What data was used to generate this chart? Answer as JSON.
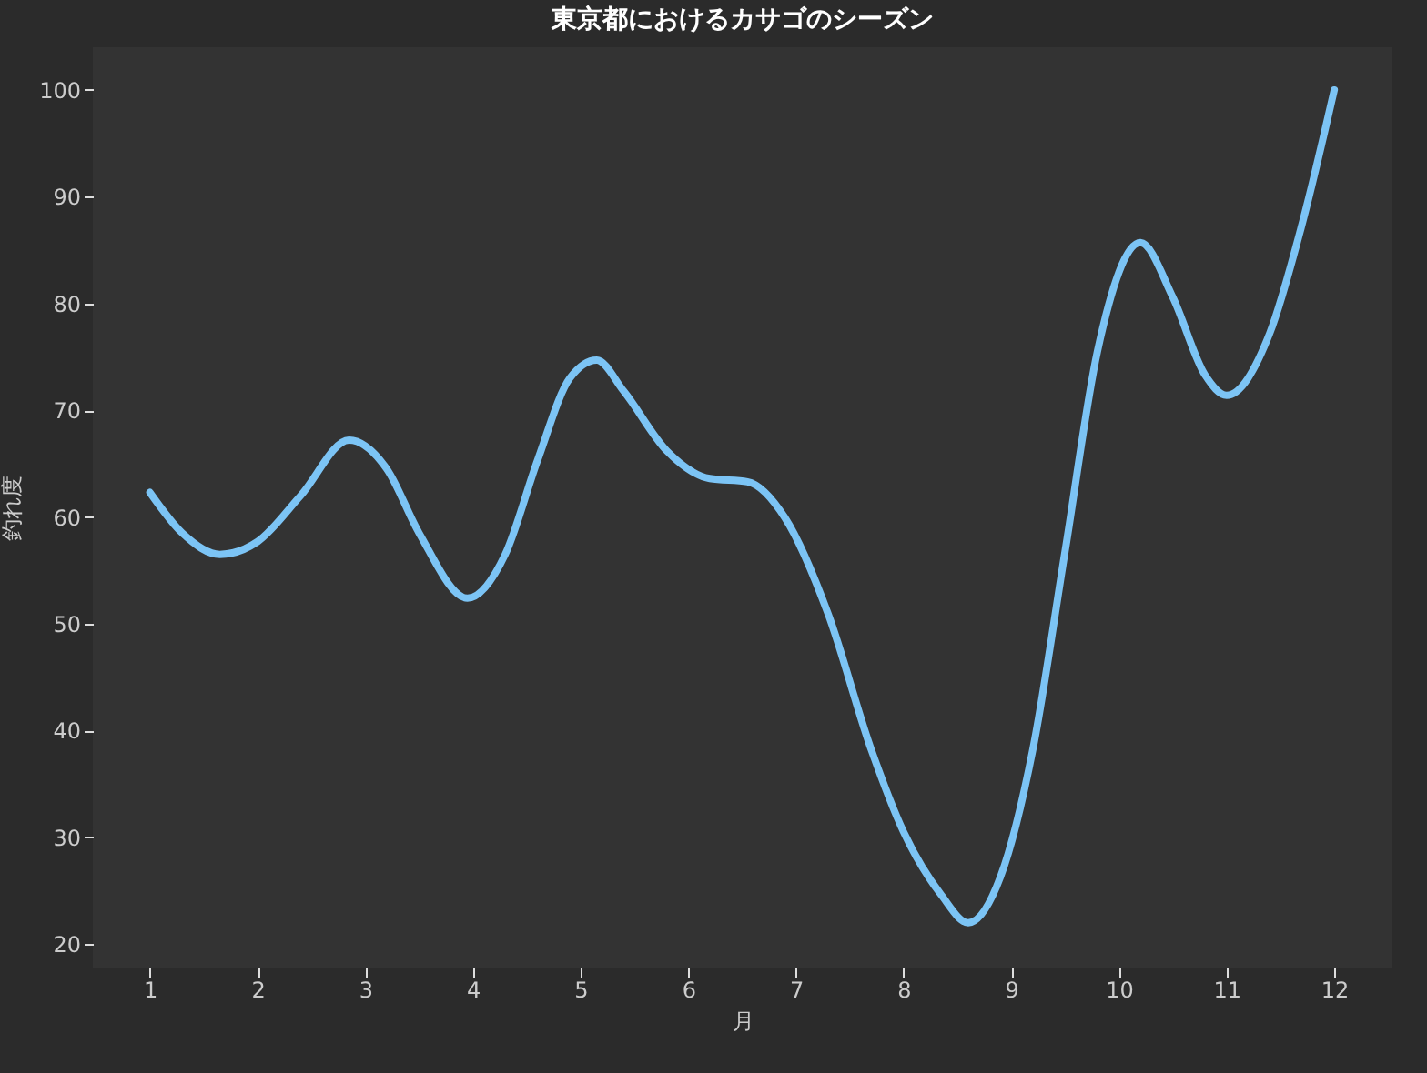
{
  "chart_data": {
    "type": "line",
    "title": "東京都におけるカサゴのシーズン",
    "xlabel": "月",
    "ylabel": "釣れ度",
    "x": [
      1,
      1.3,
      1.65,
      2,
      2.4,
      2.85,
      3.2,
      3.5,
      3.95,
      4.3,
      4.6,
      4.9,
      5.15,
      5.4,
      5.8,
      6.2,
      6.55,
      6.9,
      7.3,
      7.7,
      8,
      8.35,
      8.6,
      8.9,
      9.2,
      9.5,
      9.8,
      10.2,
      10.5,
      10.8,
      11,
      11.4,
      11.7,
      12
    ],
    "series": [
      {
        "color": "#7cc4f5",
        "values": [
          62.3,
          58.5,
          56.5,
          57.7,
          62,
          67.2,
          64.5,
          58.5,
          52.4,
          56.5,
          65.3,
          73,
          74.7,
          71.8,
          66.2,
          63.6,
          63.3,
          59.9,
          50.9,
          38.2,
          30.5,
          24.6,
          22,
          26.3,
          38.2,
          56.8,
          75.5,
          85.7,
          80.6,
          73.3,
          71.4,
          77.2,
          87.4,
          100
        ]
      }
    ],
    "xlim": [
      0.47,
      12.54
    ],
    "ylim": [
      17.8,
      104
    ],
    "xticks": [
      1,
      2,
      3,
      4,
      5,
      6,
      7,
      8,
      9,
      10,
      11,
      12
    ],
    "yticks": [
      20,
      30,
      40,
      50,
      60,
      70,
      80,
      90,
      100
    ],
    "grid": false,
    "marker": "none",
    "line_style": "solid"
  }
}
